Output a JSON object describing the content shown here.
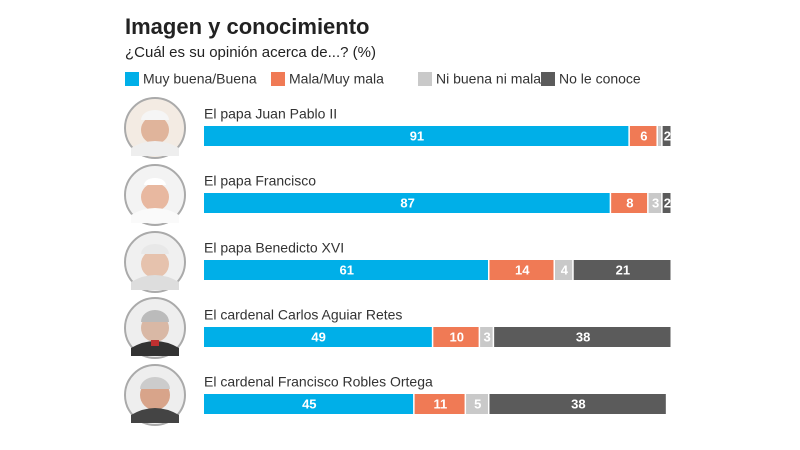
{
  "chart_data": {
    "type": "stacked-bar-horizontal",
    "title": "Imagen y conocimiento",
    "subtitle": "¿Cuál es su opinión acerca de...? (%)",
    "categories": [
      "El papa Juan Pablo II",
      "El papa Francisco",
      "El papa Benedicto XVI",
      "El cardenal Carlos Aguiar Retes",
      "El cardenal Francisco Robles Ortega"
    ],
    "series": [
      {
        "name": "Muy buena/Buena",
        "color": "#00afe8",
        "values": [
          91,
          87,
          61,
          49,
          45
        ]
      },
      {
        "name": "Mala/Muy mala",
        "color": "#f07a55",
        "values": [
          6,
          8,
          14,
          10,
          11
        ]
      },
      {
        "name": "Ni buena ni mala",
        "color": "#c9c9c9",
        "values": [
          1,
          3,
          4,
          3,
          5
        ],
        "value_labels": [
          null,
          "3",
          "4",
          "3",
          "5"
        ]
      },
      {
        "name": "No le conoce",
        "color": "#5b5b5b",
        "values": [
          2,
          2,
          21,
          38,
          38
        ]
      }
    ],
    "xlim": [
      0,
      100
    ],
    "legend": "top"
  }
}
